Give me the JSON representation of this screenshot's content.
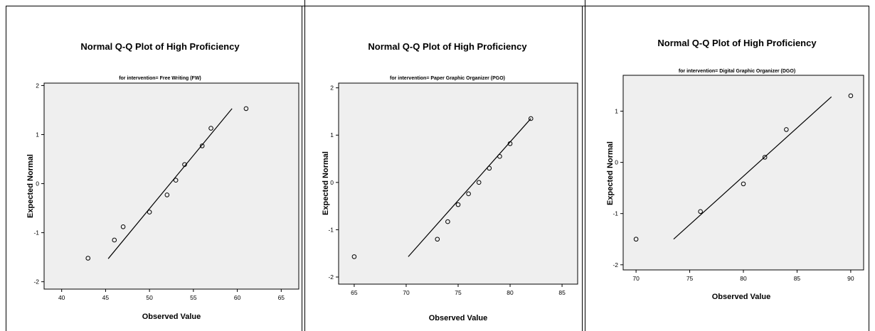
{
  "chart_data": [
    {
      "type": "scatter",
      "title": "Normal Q-Q Plot of High Proficiency",
      "subtitle": "for intervention= Free Writing (FW)",
      "xlabel": "Observed Value",
      "ylabel": "Expected Normal",
      "xlim": [
        38,
        67
      ],
      "ylim": [
        -2.15,
        2.05
      ],
      "xticks": [
        40,
        45,
        50,
        55,
        60,
        65
      ],
      "yticks": [
        -2,
        -1,
        0,
        1,
        2
      ],
      "points": [
        {
          "x": 43,
          "y": -1.52
        },
        {
          "x": 46,
          "y": -1.15
        },
        {
          "x": 47,
          "y": -0.88
        },
        {
          "x": 50,
          "y": -0.58
        },
        {
          "x": 52,
          "y": -0.23
        },
        {
          "x": 53,
          "y": 0.07
        },
        {
          "x": 54,
          "y": 0.39
        },
        {
          "x": 56,
          "y": 0.77
        },
        {
          "x": 57,
          "y": 1.13
        },
        {
          "x": 61,
          "y": 1.53
        }
      ],
      "reference_line": {
        "x": [
          45.3,
          59.4
        ],
        "y": [
          -1.53,
          1.53
        ]
      },
      "grid": false
    },
    {
      "type": "scatter",
      "title": "Normal Q-Q Plot of High Proficiency",
      "subtitle": "for intervention= Paper Graphic Organizer (PGO)",
      "xlabel": "Observed Value",
      "ylabel": "Expected Normal",
      "xlim": [
        63.5,
        86.5
      ],
      "ylim": [
        -2.15,
        2.1
      ],
      "xticks": [
        65,
        70,
        75,
        80,
        85
      ],
      "yticks": [
        -2,
        -1,
        0,
        1,
        2
      ],
      "points": [
        {
          "x": 65,
          "y": -1.57
        },
        {
          "x": 73,
          "y": -1.2
        },
        {
          "x": 74,
          "y": -0.83
        },
        {
          "x": 75,
          "y": -0.47
        },
        {
          "x": 76,
          "y": -0.24
        },
        {
          "x": 77,
          "y": 0.0
        },
        {
          "x": 78,
          "y": 0.3
        },
        {
          "x": 79,
          "y": 0.55
        },
        {
          "x": 80,
          "y": 0.82
        },
        {
          "x": 82,
          "y": 1.35
        }
      ],
      "reference_line": {
        "x": [
          70.2,
          82.0
        ],
        "y": [
          -1.57,
          1.35
        ]
      },
      "grid": false
    },
    {
      "type": "scatter",
      "title": "Normal Q-Q Plot of High Proficiency",
      "subtitle": "for intervention= Digital Graphic Organizer (DGO)",
      "xlabel": "Observed Value",
      "ylabel": "Expected Normal",
      "xlim": [
        68.8,
        91.2
      ],
      "ylim": [
        -2.1,
        1.7
      ],
      "xticks": [
        70,
        75,
        80,
        85,
        90
      ],
      "yticks": [
        -2,
        -1,
        0,
        1
      ],
      "points": [
        {
          "x": 70,
          "y": -1.5
        },
        {
          "x": 76,
          "y": -0.96
        },
        {
          "x": 80,
          "y": -0.42
        },
        {
          "x": 82,
          "y": 0.1
        },
        {
          "x": 84,
          "y": 0.64
        },
        {
          "x": 90,
          "y": 1.3
        }
      ],
      "reference_line": {
        "x": [
          73.5,
          88.2
        ],
        "y": [
          -1.5,
          1.28
        ]
      },
      "grid": false
    }
  ]
}
